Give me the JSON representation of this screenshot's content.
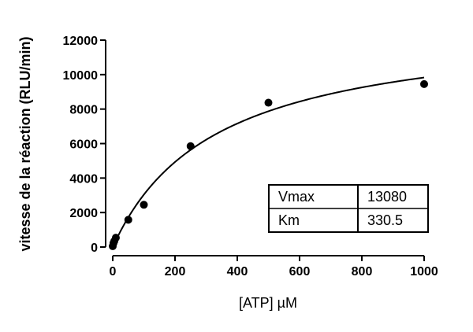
{
  "chart_data": {
    "type": "scatter",
    "title": "",
    "xlabel": "[ATP] µM",
    "ylabel": "vitesse de la réaction (RLU/min)",
    "xlim": [
      0,
      1000
    ],
    "ylim": [
      0,
      12000
    ],
    "x_ticks": [
      0,
      200,
      400,
      600,
      800,
      1000
    ],
    "y_ticks": [
      0,
      2000,
      4000,
      6000,
      8000,
      10000,
      12000
    ],
    "grid": false,
    "series": [
      {
        "points": [
          {
            "x": 0,
            "y": 50
          },
          {
            "x": 2.5,
            "y": 230
          },
          {
            "x": 5,
            "y": 340
          },
          {
            "x": 10,
            "y": 540
          },
          {
            "x": 50,
            "y": 1580
          },
          {
            "x": 100,
            "y": 2450
          },
          {
            "x": 250,
            "y": 5850
          },
          {
            "x": 500,
            "y": 8370
          },
          {
            "x": 1000,
            "y": 9450
          }
        ]
      }
    ],
    "fit": {
      "model": "michaelis-menten",
      "Vmax": 13080,
      "Km": 330.5
    },
    "parameters_table": [
      {
        "name": "Vmax",
        "value": "13080"
      },
      {
        "name": "Km",
        "value": "330.5"
      }
    ]
  }
}
